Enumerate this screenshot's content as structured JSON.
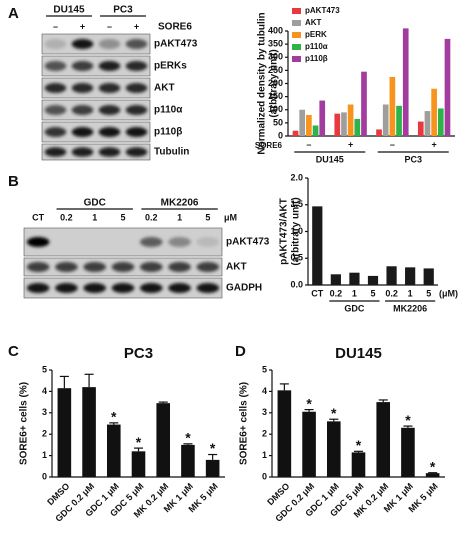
{
  "panel_labels": [
    "A",
    "B",
    "C",
    "D"
  ],
  "blots": [
    {
      "groups": [
        "DU145",
        "PC3"
      ],
      "lanes": [
        "–",
        "+",
        "–",
        "+"
      ],
      "treatment": "SORE6",
      "rows": [
        "pAKT473",
        "pERKs",
        "AKT",
        "p110α",
        "p110β",
        "Tubulin"
      ]
    },
    {
      "groups": [
        "GDC",
        "MK2206"
      ],
      "lanes": [
        "CT",
        "0.2",
        "1",
        "5",
        "0.2",
        "1",
        "5"
      ],
      "unit": "μM",
      "rows": [
        "pAKT473",
        "AKT",
        "GADPH"
      ]
    }
  ],
  "chart_data": [
    {
      "type": "grouped_bar",
      "ylabel": [
        "Normalized density by tubulin",
        "(arbitrary unit)"
      ],
      "categories": [
        "–",
        "+",
        "–",
        "+"
      ],
      "x_row_label": "SORE6",
      "groups": [
        "DU145",
        "PC3"
      ],
      "series": [
        {
          "name": "pAKT473",
          "color": "#e8393f",
          "values": [
            20,
            85,
            25,
            55
          ]
        },
        {
          "name": "AKT",
          "color": "#9e9e9e",
          "values": [
            100,
            90,
            120,
            95
          ]
        },
        {
          "name": "pERK",
          "color": "#f7941d",
          "values": [
            80,
            120,
            225,
            180
          ]
        },
        {
          "name": "p110α",
          "color": "#2db34a",
          "values": [
            40,
            65,
            115,
            105
          ]
        },
        {
          "name": "p110β",
          "color": "#a23c9e",
          "values": [
            135,
            245,
            410,
            370
          ]
        }
      ],
      "ylim": [
        0,
        400
      ],
      "yticks": [
        0,
        50,
        100,
        150,
        200,
        250,
        300,
        350,
        400
      ],
      "legend": "top-left"
    },
    {
      "type": "bar",
      "ylabel": [
        "pAKT473/AKT",
        "(arbitrary unit)"
      ],
      "categories": [
        "CT",
        "0.2",
        "1",
        "5",
        "0.2",
        "1",
        "5"
      ],
      "x_unit": "(μM)",
      "groups": [
        "GDC",
        "MK2206"
      ],
      "values": [
        1.47,
        0.2,
        0.23,
        0.17,
        0.35,
        0.33,
        0.31
      ],
      "color": "#1a1a1a",
      "ylim": [
        0,
        2
      ],
      "yticks": [
        {
          "value": 0,
          "label": "0.0"
        },
        0.5,
        {
          "value": 1,
          "label": "1.0"
        },
        1.5,
        {
          "value": 2,
          "label": "2.0"
        }
      ]
    },
    {
      "type": "bar",
      "title": "PC3",
      "ylabel": [
        "SORE6+ cells (%)"
      ],
      "categories": [
        "DMSO",
        "GDC 0.2 μM",
        "GDC 1 μM",
        "GDC 5 μM",
        "MK 0.2 μM",
        "MK 1 μM",
        "MK 5 μM"
      ],
      "values": [
        4.15,
        4.2,
        2.45,
        1.2,
        3.45,
        1.5,
        0.8
      ],
      "errors": [
        0.55,
        0.6,
        0.08,
        0.15,
        0.05,
        0.05,
        0.25
      ],
      "color": "#111111",
      "ylim": [
        0,
        5
      ],
      "yticks": [
        0,
        1,
        2,
        3,
        4,
        5
      ],
      "annotations": [
        {
          "category": "GDC 1 μM",
          "text": "*"
        },
        {
          "category": "GDC 5 μM",
          "text": "*"
        },
        {
          "category": "MK 1 μM",
          "text": "*"
        },
        {
          "category": "MK 5 μM",
          "text": "*"
        }
      ]
    },
    {
      "type": "bar",
      "title": "DU145",
      "ylabel": [
        "SORE6+ cells (%)"
      ],
      "categories": [
        "DMSO",
        "GDC 0.2 μM",
        "GDC 1 μM",
        "GDC 5 μM",
        "MK 0.2 μM",
        "MK 1 μM",
        "MK 5 μM"
      ],
      "values": [
        4.05,
        3.05,
        2.6,
        1.15,
        3.5,
        2.3,
        0.18
      ],
      "errors": [
        0.3,
        0.1,
        0.1,
        0.05,
        0.1,
        0.08,
        0.02
      ],
      "color": "#111111",
      "ylim": [
        0,
        5
      ],
      "yticks": [
        0,
        1,
        2,
        3,
        4,
        5
      ],
      "annotations": [
        {
          "category": "GDC 0.2 μM",
          "text": "*"
        },
        {
          "category": "GDC 1 μM",
          "text": "*"
        },
        {
          "category": "GDC 5 μM",
          "text": "*"
        },
        {
          "category": "MK 1 μM",
          "text": "*"
        },
        {
          "category": "MK 5 μM",
          "text": "*"
        }
      ]
    }
  ]
}
